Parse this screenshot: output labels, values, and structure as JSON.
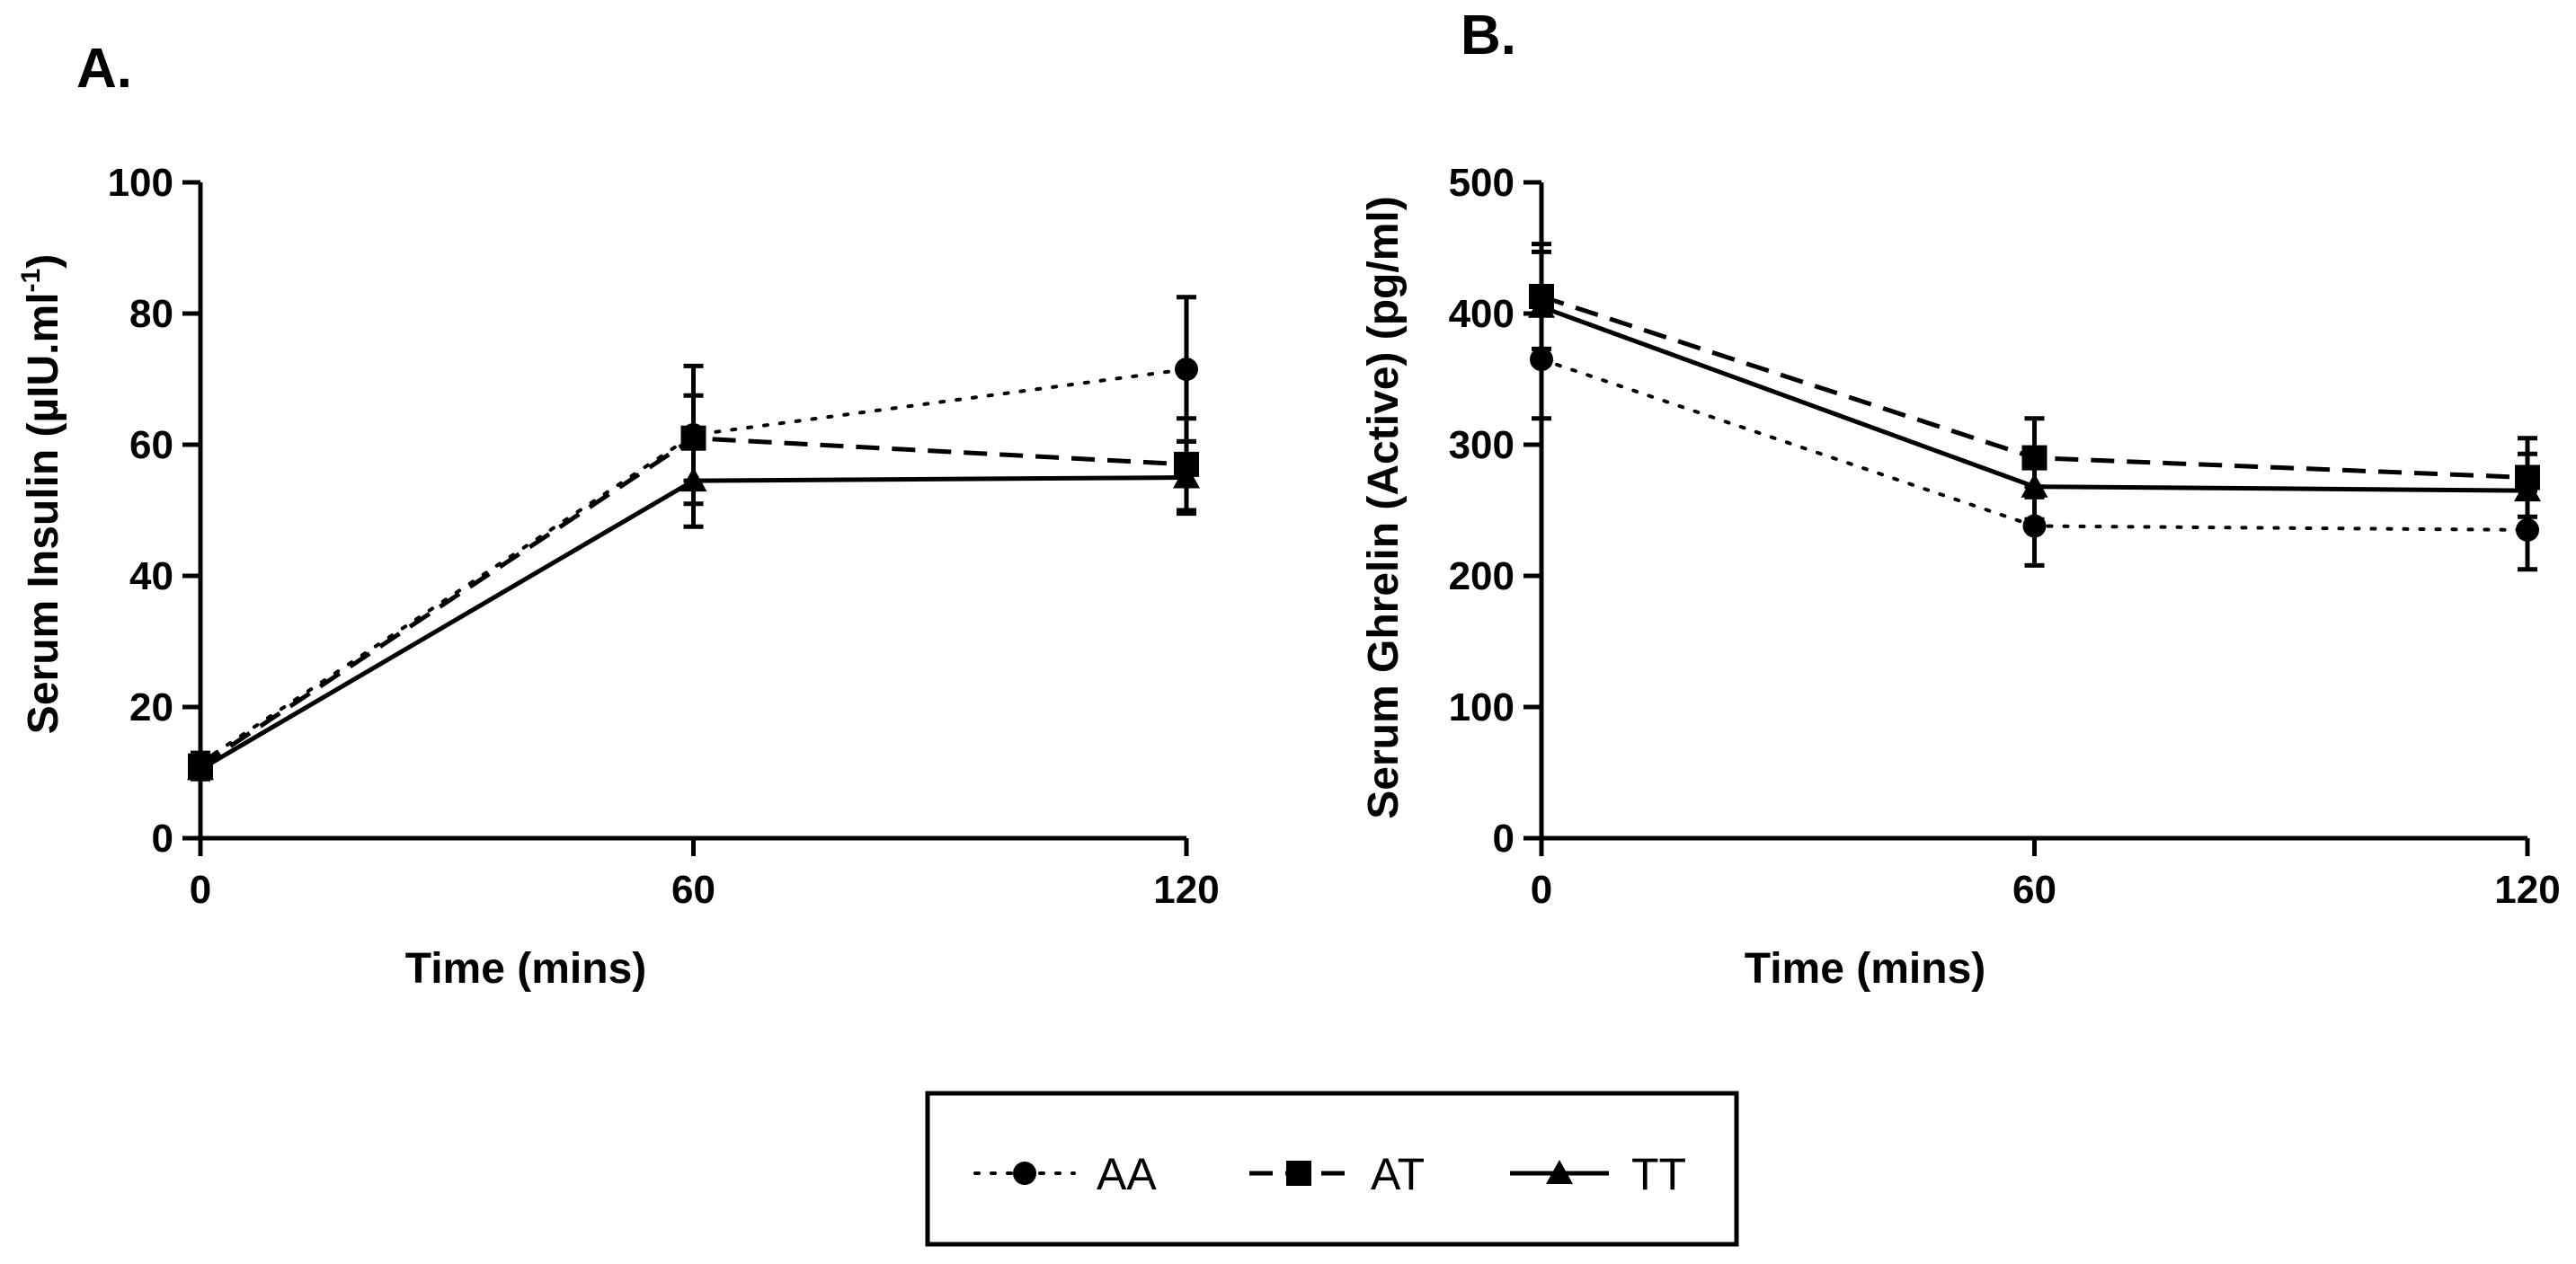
{
  "chart_data": [
    {
      "type": "line",
      "panel_label": "A.",
      "xlabel": "Time (mins)",
      "ylabel": "Serum Insulin (µIU.ml",
      "ylabel_superscript": "-1",
      "ylabel_suffix": ")",
      "x": [
        0,
        60,
        120
      ],
      "xticks": [
        "0",
        "60",
        "120"
      ],
      "xlim": [
        0,
        120
      ],
      "ylim": [
        0,
        100
      ],
      "yticks": [
        "0",
        "20",
        "40",
        "60",
        "80",
        "100"
      ],
      "grid": false,
      "series": [
        {
          "name": "AA",
          "values": [
            11.5,
            61.5,
            71.5
          ],
          "err": [
            1.5,
            10.5,
            11
          ]
        },
        {
          "name": "AT",
          "values": [
            11.0,
            61.0,
            57.0
          ],
          "err": [
            1.5,
            6.5,
            7
          ]
        },
        {
          "name": "TT",
          "values": [
            10.5,
            54.5,
            55.0
          ],
          "err": [
            1.5,
            7,
            5.5
          ]
        }
      ]
    },
    {
      "type": "line",
      "panel_label": "B.",
      "xlabel": "Time (mins)",
      "ylabel": "Serum Ghrelin (Active) (pg/ml)",
      "x": [
        0,
        60,
        120
      ],
      "xticks": [
        "0",
        "60",
        "120"
      ],
      "xlim": [
        0,
        120
      ],
      "ylim": [
        0,
        500
      ],
      "yticks": [
        "0",
        "100",
        "200",
        "300",
        "400",
        "500"
      ],
      "grid": false,
      "series": [
        {
          "name": "AA",
          "values": [
            365,
            238,
            235
          ],
          "err": [
            45,
            30,
            30
          ]
        },
        {
          "name": "AT",
          "values": [
            413,
            290,
            275
          ],
          "err": [
            40,
            30,
            30
          ]
        },
        {
          "name": "TT",
          "values": [
            405,
            268,
            265
          ],
          "err": [
            42,
            25,
            28
          ]
        }
      ]
    }
  ],
  "legend": {
    "placement": "bottom-center",
    "items": [
      {
        "label": "AA",
        "line": "dotted",
        "marker": "circle"
      },
      {
        "label": "AT",
        "line": "dashed",
        "marker": "square"
      },
      {
        "label": "TT",
        "line": "solid",
        "marker": "triangle"
      }
    ]
  },
  "colors": {
    "ink": "#000000",
    "background": "#ffffff"
  }
}
